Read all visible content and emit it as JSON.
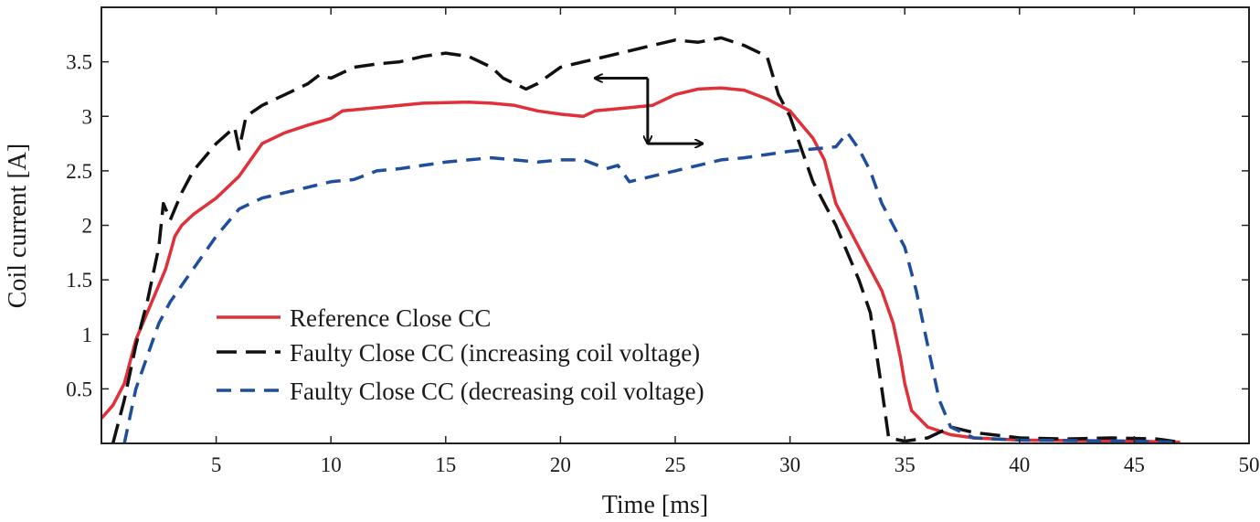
{
  "chart_data": {
    "type": "line",
    "title": "",
    "xlabel": "Time [ms]",
    "ylabel": "Coil current [A]",
    "xlim": [
      0,
      50
    ],
    "ylim": [
      0,
      4
    ],
    "x_ticks": [
      5,
      10,
      15,
      20,
      25,
      30,
      35,
      40,
      45,
      50
    ],
    "x_tick_labels": [
      "5",
      "10",
      "15",
      "20",
      "25",
      "30",
      "35",
      "40",
      "45",
      "50"
    ],
    "y_ticks": [
      0.5,
      1,
      1.5,
      2,
      2.5,
      3,
      3.5
    ],
    "y_tick_labels": [
      "0.5",
      "1",
      "1.5",
      "2",
      "2.5",
      "3",
      "3.5"
    ],
    "grid": false,
    "legend_position": "lower-left",
    "series": [
      {
        "name": "Reference Close CC",
        "color": "#e0303a",
        "dash": "solid",
        "points": [
          [
            0,
            0.23
          ],
          [
            0.5,
            0.35
          ],
          [
            1,
            0.55
          ],
          [
            1.5,
            0.95
          ],
          [
            2,
            1.2
          ],
          [
            2.5,
            1.45
          ],
          [
            2.8,
            1.6
          ],
          [
            3,
            1.75
          ],
          [
            3.2,
            1.9
          ],
          [
            3.5,
            2.0
          ],
          [
            4,
            2.1
          ],
          [
            5,
            2.25
          ],
          [
            6,
            2.45
          ],
          [
            6.5,
            2.6
          ],
          [
            7,
            2.75
          ],
          [
            8,
            2.85
          ],
          [
            9,
            2.92
          ],
          [
            10,
            2.98
          ],
          [
            10.5,
            3.05
          ],
          [
            12,
            3.08
          ],
          [
            14,
            3.12
          ],
          [
            16,
            3.13
          ],
          [
            17,
            3.12
          ],
          [
            18,
            3.1
          ],
          [
            19,
            3.05
          ],
          [
            20,
            3.02
          ],
          [
            21,
            3.0
          ],
          [
            21.5,
            3.05
          ],
          [
            23,
            3.08
          ],
          [
            24,
            3.1
          ],
          [
            25,
            3.2
          ],
          [
            26,
            3.25
          ],
          [
            27,
            3.26
          ],
          [
            28,
            3.24
          ],
          [
            29,
            3.16
          ],
          [
            30,
            3.05
          ],
          [
            31,
            2.8
          ],
          [
            31.5,
            2.6
          ],
          [
            32,
            2.2
          ],
          [
            33,
            1.8
          ],
          [
            34,
            1.4
          ],
          [
            34.5,
            1.1
          ],
          [
            34.8,
            0.8
          ],
          [
            35,
            0.55
          ],
          [
            35.3,
            0.3
          ],
          [
            36,
            0.15
          ],
          [
            37,
            0.08
          ],
          [
            38,
            0.05
          ],
          [
            40,
            0.03
          ],
          [
            45,
            0.02
          ],
          [
            47,
            0.01
          ]
        ]
      },
      {
        "name": "Faulty Close CC (increasing coil voltage)",
        "color": "#111111",
        "dash": "long",
        "points": [
          [
            0.5,
            0.0
          ],
          [
            1,
            0.4
          ],
          [
            1.5,
            0.9
          ],
          [
            2,
            1.3
          ],
          [
            2.5,
            1.8
          ],
          [
            2.7,
            2.2
          ],
          [
            3,
            2.05
          ],
          [
            3.5,
            2.3
          ],
          [
            4,
            2.5
          ],
          [
            5,
            2.75
          ],
          [
            5.8,
            2.9
          ],
          [
            6,
            2.7
          ],
          [
            6.3,
            3.0
          ],
          [
            7,
            3.1
          ],
          [
            8,
            3.2
          ],
          [
            9,
            3.3
          ],
          [
            9.5,
            3.38
          ],
          [
            10,
            3.35
          ],
          [
            10.5,
            3.4
          ],
          [
            11,
            3.45
          ],
          [
            12,
            3.48
          ],
          [
            13,
            3.5
          ],
          [
            14,
            3.55
          ],
          [
            15,
            3.58
          ],
          [
            16,
            3.55
          ],
          [
            17,
            3.45
          ],
          [
            17.5,
            3.35
          ],
          [
            18,
            3.3
          ],
          [
            18.5,
            3.25
          ],
          [
            19,
            3.3
          ],
          [
            20,
            3.45
          ],
          [
            21,
            3.5
          ],
          [
            22,
            3.55
          ],
          [
            23,
            3.6
          ],
          [
            24,
            3.65
          ],
          [
            25,
            3.7
          ],
          [
            26,
            3.68
          ],
          [
            27,
            3.72
          ],
          [
            28,
            3.65
          ],
          [
            29,
            3.55
          ],
          [
            29.5,
            3.2
          ],
          [
            30,
            3.0
          ],
          [
            31,
            2.4
          ],
          [
            32,
            2.0
          ],
          [
            33,
            1.5
          ],
          [
            33.5,
            1.2
          ],
          [
            34,
            0.5
          ],
          [
            34.3,
            0.05
          ],
          [
            35,
            0.02
          ],
          [
            36,
            0.05
          ],
          [
            37,
            0.15
          ],
          [
            38,
            0.1
          ],
          [
            40,
            0.05
          ],
          [
            42,
            0.04
          ],
          [
            44,
            0.05
          ],
          [
            46,
            0.04
          ],
          [
            47,
            0.01
          ]
        ]
      },
      {
        "name": "Faulty Close CC (decreasing coil voltage)",
        "color": "#1f4e9c",
        "dash": "medium",
        "points": [
          [
            1,
            0.0
          ],
          [
            1.5,
            0.5
          ],
          [
            2,
            0.8
          ],
          [
            2.5,
            1.1
          ],
          [
            3,
            1.3
          ],
          [
            4,
            1.6
          ],
          [
            5,
            1.9
          ],
          [
            6,
            2.15
          ],
          [
            7,
            2.25
          ],
          [
            8,
            2.3
          ],
          [
            9,
            2.35
          ],
          [
            10,
            2.4
          ],
          [
            11,
            2.42
          ],
          [
            12,
            2.5
          ],
          [
            13,
            2.52
          ],
          [
            14,
            2.55
          ],
          [
            15,
            2.58
          ],
          [
            16,
            2.6
          ],
          [
            17,
            2.62
          ],
          [
            18,
            2.6
          ],
          [
            19,
            2.58
          ],
          [
            20,
            2.6
          ],
          [
            21,
            2.6
          ],
          [
            22,
            2.52
          ],
          [
            22.5,
            2.55
          ],
          [
            23,
            2.4
          ],
          [
            24,
            2.45
          ],
          [
            25,
            2.5
          ],
          [
            26,
            2.55
          ],
          [
            27,
            2.6
          ],
          [
            28,
            2.62
          ],
          [
            29,
            2.65
          ],
          [
            30,
            2.68
          ],
          [
            31,
            2.7
          ],
          [
            32,
            2.72
          ],
          [
            32.5,
            2.85
          ],
          [
            33,
            2.7
          ],
          [
            33.5,
            2.5
          ],
          [
            34,
            2.2
          ],
          [
            34.5,
            2.0
          ],
          [
            35,
            1.8
          ],
          [
            35.5,
            1.4
          ],
          [
            36,
            0.9
          ],
          [
            36.5,
            0.4
          ],
          [
            37,
            0.15
          ],
          [
            38,
            0.05
          ],
          [
            40,
            0.03
          ],
          [
            45,
            0.02
          ],
          [
            47,
            0.01
          ]
        ]
      }
    ],
    "annotations": [
      {
        "type": "arrow",
        "from": [
          23.8,
          3.35
        ],
        "to": [
          21.5,
          3.35
        ]
      },
      {
        "type": "arrow",
        "from": [
          23.8,
          3.35
        ],
        "to": [
          23.8,
          2.75
        ]
      },
      {
        "type": "arrow",
        "from": [
          23.8,
          2.75
        ],
        "to": [
          26.2,
          2.75
        ]
      }
    ]
  }
}
